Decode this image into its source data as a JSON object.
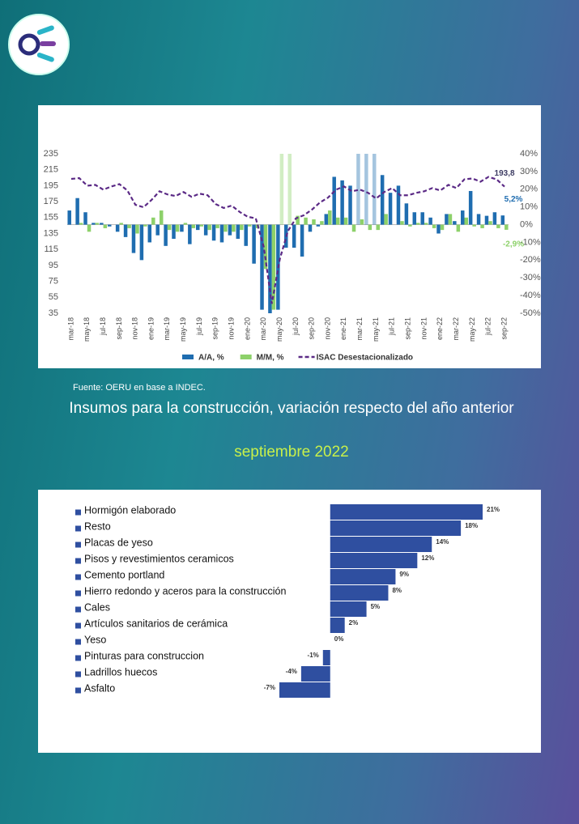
{
  "chart_data": [
    {
      "type": "combo",
      "categories": [
        "mar-18",
        null,
        "may-18",
        null,
        "jul-18",
        null,
        "sep-18",
        null,
        "nov-18",
        null,
        "ene-19",
        null,
        "mar-19",
        null,
        "may-19",
        null,
        "jul-19",
        null,
        "sep-19",
        null,
        "nov-19",
        null,
        "ene-20",
        null,
        "mar-20",
        null,
        "may-20",
        null,
        "jul-20",
        null,
        "sep-20",
        null,
        "nov-20",
        null,
        "ene-21",
        null,
        "mar-21",
        null,
        "may-21",
        null,
        "jul-21",
        null,
        "sep-21",
        null,
        "nov-21",
        null,
        "ene-22",
        null,
        "mar-22",
        null,
        "may-22",
        null,
        "jul-22",
        null,
        "sep-22"
      ],
      "series": [
        {
          "name": "A/A, %",
          "color": "#1f6db0",
          "axis": "y2",
          "values": [
            8,
            15,
            7,
            1,
            1,
            -1,
            -4,
            -7,
            -16,
            -20,
            -10,
            -6,
            -12,
            -8,
            -4,
            -11,
            -3,
            -6,
            -9,
            -10,
            -6,
            -8,
            -12,
            -22,
            -48,
            -50,
            -48,
            -13,
            -13,
            -18,
            -4,
            -1,
            6,
            27,
            25,
            22,
            45,
            60,
            45,
            28,
            18,
            22,
            12,
            7,
            7,
            4,
            -5,
            6,
            2,
            8,
            19,
            6,
            5,
            7,
            5.2
          ],
          "value_labels": [
            null,
            null,
            null,
            null,
            null,
            null,
            null,
            null,
            null,
            null,
            null,
            null,
            null,
            null,
            null,
            null,
            null,
            null,
            null,
            null,
            null,
            null,
            null,
            null,
            null,
            null,
            null,
            null,
            null,
            null,
            null,
            null,
            null,
            null,
            null,
            null,
            null,
            null,
            null,
            null,
            null,
            null,
            null,
            null,
            null,
            null,
            null,
            null,
            null,
            null,
            null,
            null,
            null,
            null,
            "5,2%"
          ]
        },
        {
          "name": "M/M, %",
          "color": "#8dd16a",
          "axis": "y2",
          "values": [
            0,
            1,
            -4,
            1,
            -2,
            0,
            1,
            -2,
            -5,
            -1,
            4,
            8,
            -3,
            -4,
            1,
            -2,
            -1,
            -3,
            -2,
            -4,
            -4,
            -3,
            -1,
            -2,
            -25,
            -48,
            42,
            42,
            5,
            4,
            3,
            2,
            8,
            4,
            4,
            -4,
            3,
            -3,
            -3,
            6,
            0,
            2,
            -1,
            1,
            1,
            -2,
            -3,
            6,
            -4,
            4,
            -1,
            -2,
            2,
            -2,
            -2.9
          ],
          "value_labels": [
            null,
            null,
            null,
            null,
            null,
            null,
            null,
            null,
            null,
            null,
            null,
            null,
            null,
            null,
            null,
            null,
            null,
            null,
            null,
            null,
            null,
            null,
            null,
            null,
            null,
            null,
            null,
            null,
            null,
            null,
            null,
            null,
            null,
            null,
            null,
            null,
            null,
            null,
            null,
            null,
            null,
            null,
            null,
            null,
            null,
            null,
            null,
            null,
            null,
            null,
            null,
            null,
            null,
            null,
            "-2,9%"
          ]
        },
        {
          "name": "ISAC Desestacionalizado",
          "color": "#5b2a86",
          "line": "dashed",
          "values": [
            203.5,
            204.5,
            195,
            196,
            190,
            194,
            197,
            189,
            171,
            168,
            177,
            188,
            184,
            182,
            187,
            181,
            185,
            183,
            172,
            167,
            170,
            162,
            156,
            154,
            118,
            47,
            103,
            138,
            154,
            158,
            165,
            174,
            180,
            190,
            194,
            188,
            190,
            186,
            179,
            187,
            192,
            183,
            183,
            186,
            188,
            192,
            189,
            196,
            192,
            203,
            204,
            200,
            206,
            203,
            193.8
          ],
          "value_labels": [
            null,
            null,
            null,
            null,
            null,
            null,
            null,
            null,
            null,
            null,
            null,
            null,
            null,
            null,
            null,
            null,
            null,
            null,
            null,
            null,
            null,
            null,
            null,
            null,
            null,
            null,
            null,
            null,
            null,
            null,
            null,
            null,
            null,
            null,
            null,
            null,
            null,
            null,
            null,
            null,
            null,
            null,
            null,
            null,
            null,
            null,
            null,
            null,
            null,
            null,
            null,
            null,
            null,
            null,
            "193,8"
          ]
        }
      ],
      "ylim": [
        35,
        235
      ],
      "yticks": [
        235,
        215,
        195,
        175,
        155,
        135,
        115,
        95,
        75,
        55,
        35
      ],
      "y2lim": [
        -50,
        40
      ],
      "y2ticks": [
        {
          "value": 40,
          "label": "40%"
        },
        {
          "value": 30,
          "label": "30%"
        },
        {
          "value": 20,
          "label": "20%"
        },
        {
          "value": 10,
          "label": "10%"
        },
        {
          "value": 0,
          "label": "0%"
        },
        {
          "value": -10,
          "label": "-10%"
        },
        {
          "value": -20,
          "label": "-20%"
        },
        {
          "value": -30,
          "label": "-30%"
        },
        {
          "value": -40,
          "label": "-40%"
        },
        {
          "value": -50,
          "label": "-50%"
        }
      ],
      "legend": "bottom",
      "source": "Fuente: OERU en base a INDEC."
    },
    {
      "type": "barh",
      "title": "Insumos para la construcción, variación respecto del año anterior",
      "subtitle": "septiembre 2022",
      "categories": [
        "Hormigón elaborado",
        "Resto",
        "Placas de yeso",
        "Pisos y revestimientos ceramicos",
        "Cemento portland",
        "Hierro redondo y aceros para la construcción",
        "Cales",
        "Artículos sanitarios de cerámica",
        "Yeso",
        "Pinturas para construccion",
        "Ladrillos huecos",
        "Asfalto"
      ],
      "values": [
        21,
        18,
        14,
        12,
        9,
        8,
        5,
        2,
        0,
        -1,
        -4,
        -7
      ],
      "value_labels": [
        "21%",
        "18%",
        "14%",
        "12%",
        "9%",
        "8%",
        "5%",
        "2%",
        "0%",
        "-1%",
        "-4%",
        "-7%"
      ],
      "xlim": [
        -7,
        21
      ],
      "color": "#2f4fa0"
    }
  ]
}
